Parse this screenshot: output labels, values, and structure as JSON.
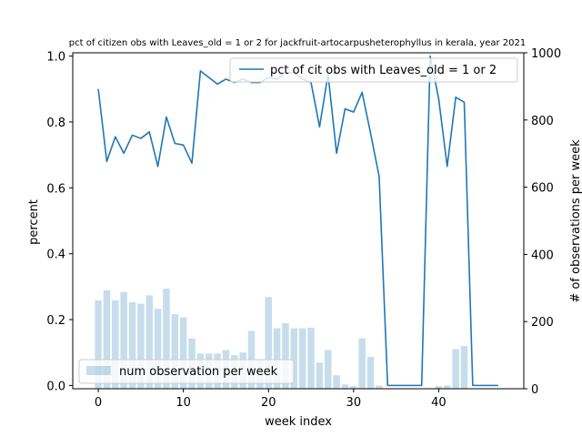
{
  "chart_data": {
    "type": "bar+line",
    "title": "pct of citizen obs with Leaves_old = 1 or 2 for jackfruit-artocarpusheterophyllus in kerala, year 2021",
    "xlabel": "week index",
    "ylabel": "percent",
    "y2label": "# of observations per week",
    "xlim": [
      -3,
      50
    ],
    "ylim": [
      -0.01,
      1.01
    ],
    "y2lim": [
      0,
      1000
    ],
    "xticks": [
      0,
      10,
      20,
      30,
      40
    ],
    "yticks": [
      0.0,
      0.2,
      0.4,
      0.6,
      0.8,
      1.0
    ],
    "yticklabels": [
      "0.0",
      "0.2",
      "0.4",
      "0.6",
      "0.8",
      "1.0"
    ],
    "y2ticks": [
      0,
      200,
      400,
      600,
      800,
      1000
    ],
    "bar_series": {
      "name": "num observation per week",
      "color": "#1f77b4",
      "opacity": 0.25,
      "legend_position": "lower-left",
      "x": [
        0,
        1,
        2,
        3,
        4,
        5,
        6,
        7,
        8,
        9,
        10,
        11,
        12,
        13,
        14,
        15,
        16,
        17,
        18,
        19,
        20,
        21,
        22,
        23,
        24,
        25,
        26,
        27,
        28,
        29,
        30,
        31,
        32,
        33,
        34,
        35,
        36,
        37,
        38,
        39,
        40,
        41,
        42,
        43,
        44,
        45,
        46,
        47
      ],
      "values": [
        263,
        293,
        263,
        288,
        258,
        253,
        278,
        238,
        298,
        222,
        212,
        150,
        105,
        105,
        105,
        115,
        100,
        108,
        172,
        88,
        273,
        180,
        195,
        180,
        180,
        182,
        78,
        115,
        40,
        13,
        8,
        150,
        95,
        10,
        0,
        0,
        0,
        0,
        0,
        0,
        8,
        10,
        118,
        127,
        0,
        0,
        0,
        0
      ]
    },
    "line_series": {
      "name": "pct of cit obs with Leaves_old = 1 or 2",
      "color": "#1f77b4",
      "legend_position": "upper-right",
      "x": [
        0,
        1,
        2,
        3,
        4,
        5,
        6,
        7,
        8,
        9,
        10,
        11,
        12,
        13,
        14,
        15,
        16,
        17,
        18,
        19,
        20,
        21,
        22,
        23,
        24,
        25,
        26,
        27,
        28,
        29,
        30,
        31,
        32,
        33,
        34,
        35,
        36,
        37,
        38,
        39,
        40,
        41,
        42,
        43,
        44,
        45,
        46,
        47
      ],
      "values": [
        0.9,
        0.68,
        0.755,
        0.705,
        0.76,
        0.75,
        0.77,
        0.665,
        0.815,
        0.735,
        0.73,
        0.675,
        0.955,
        0.935,
        0.915,
        0.93,
        0.92,
        0.93,
        0.92,
        0.92,
        0.935,
        0.93,
        0.95,
        0.95,
        0.93,
        0.92,
        0.785,
        0.945,
        0.705,
        0.84,
        0.83,
        0.89,
        0.765,
        0.635,
        0.0,
        0.0,
        0.0,
        0.0,
        0.0,
        1.0,
        0.87,
        0.665,
        0.875,
        0.86,
        0.0,
        0.0,
        0.0,
        0.0
      ]
    }
  }
}
